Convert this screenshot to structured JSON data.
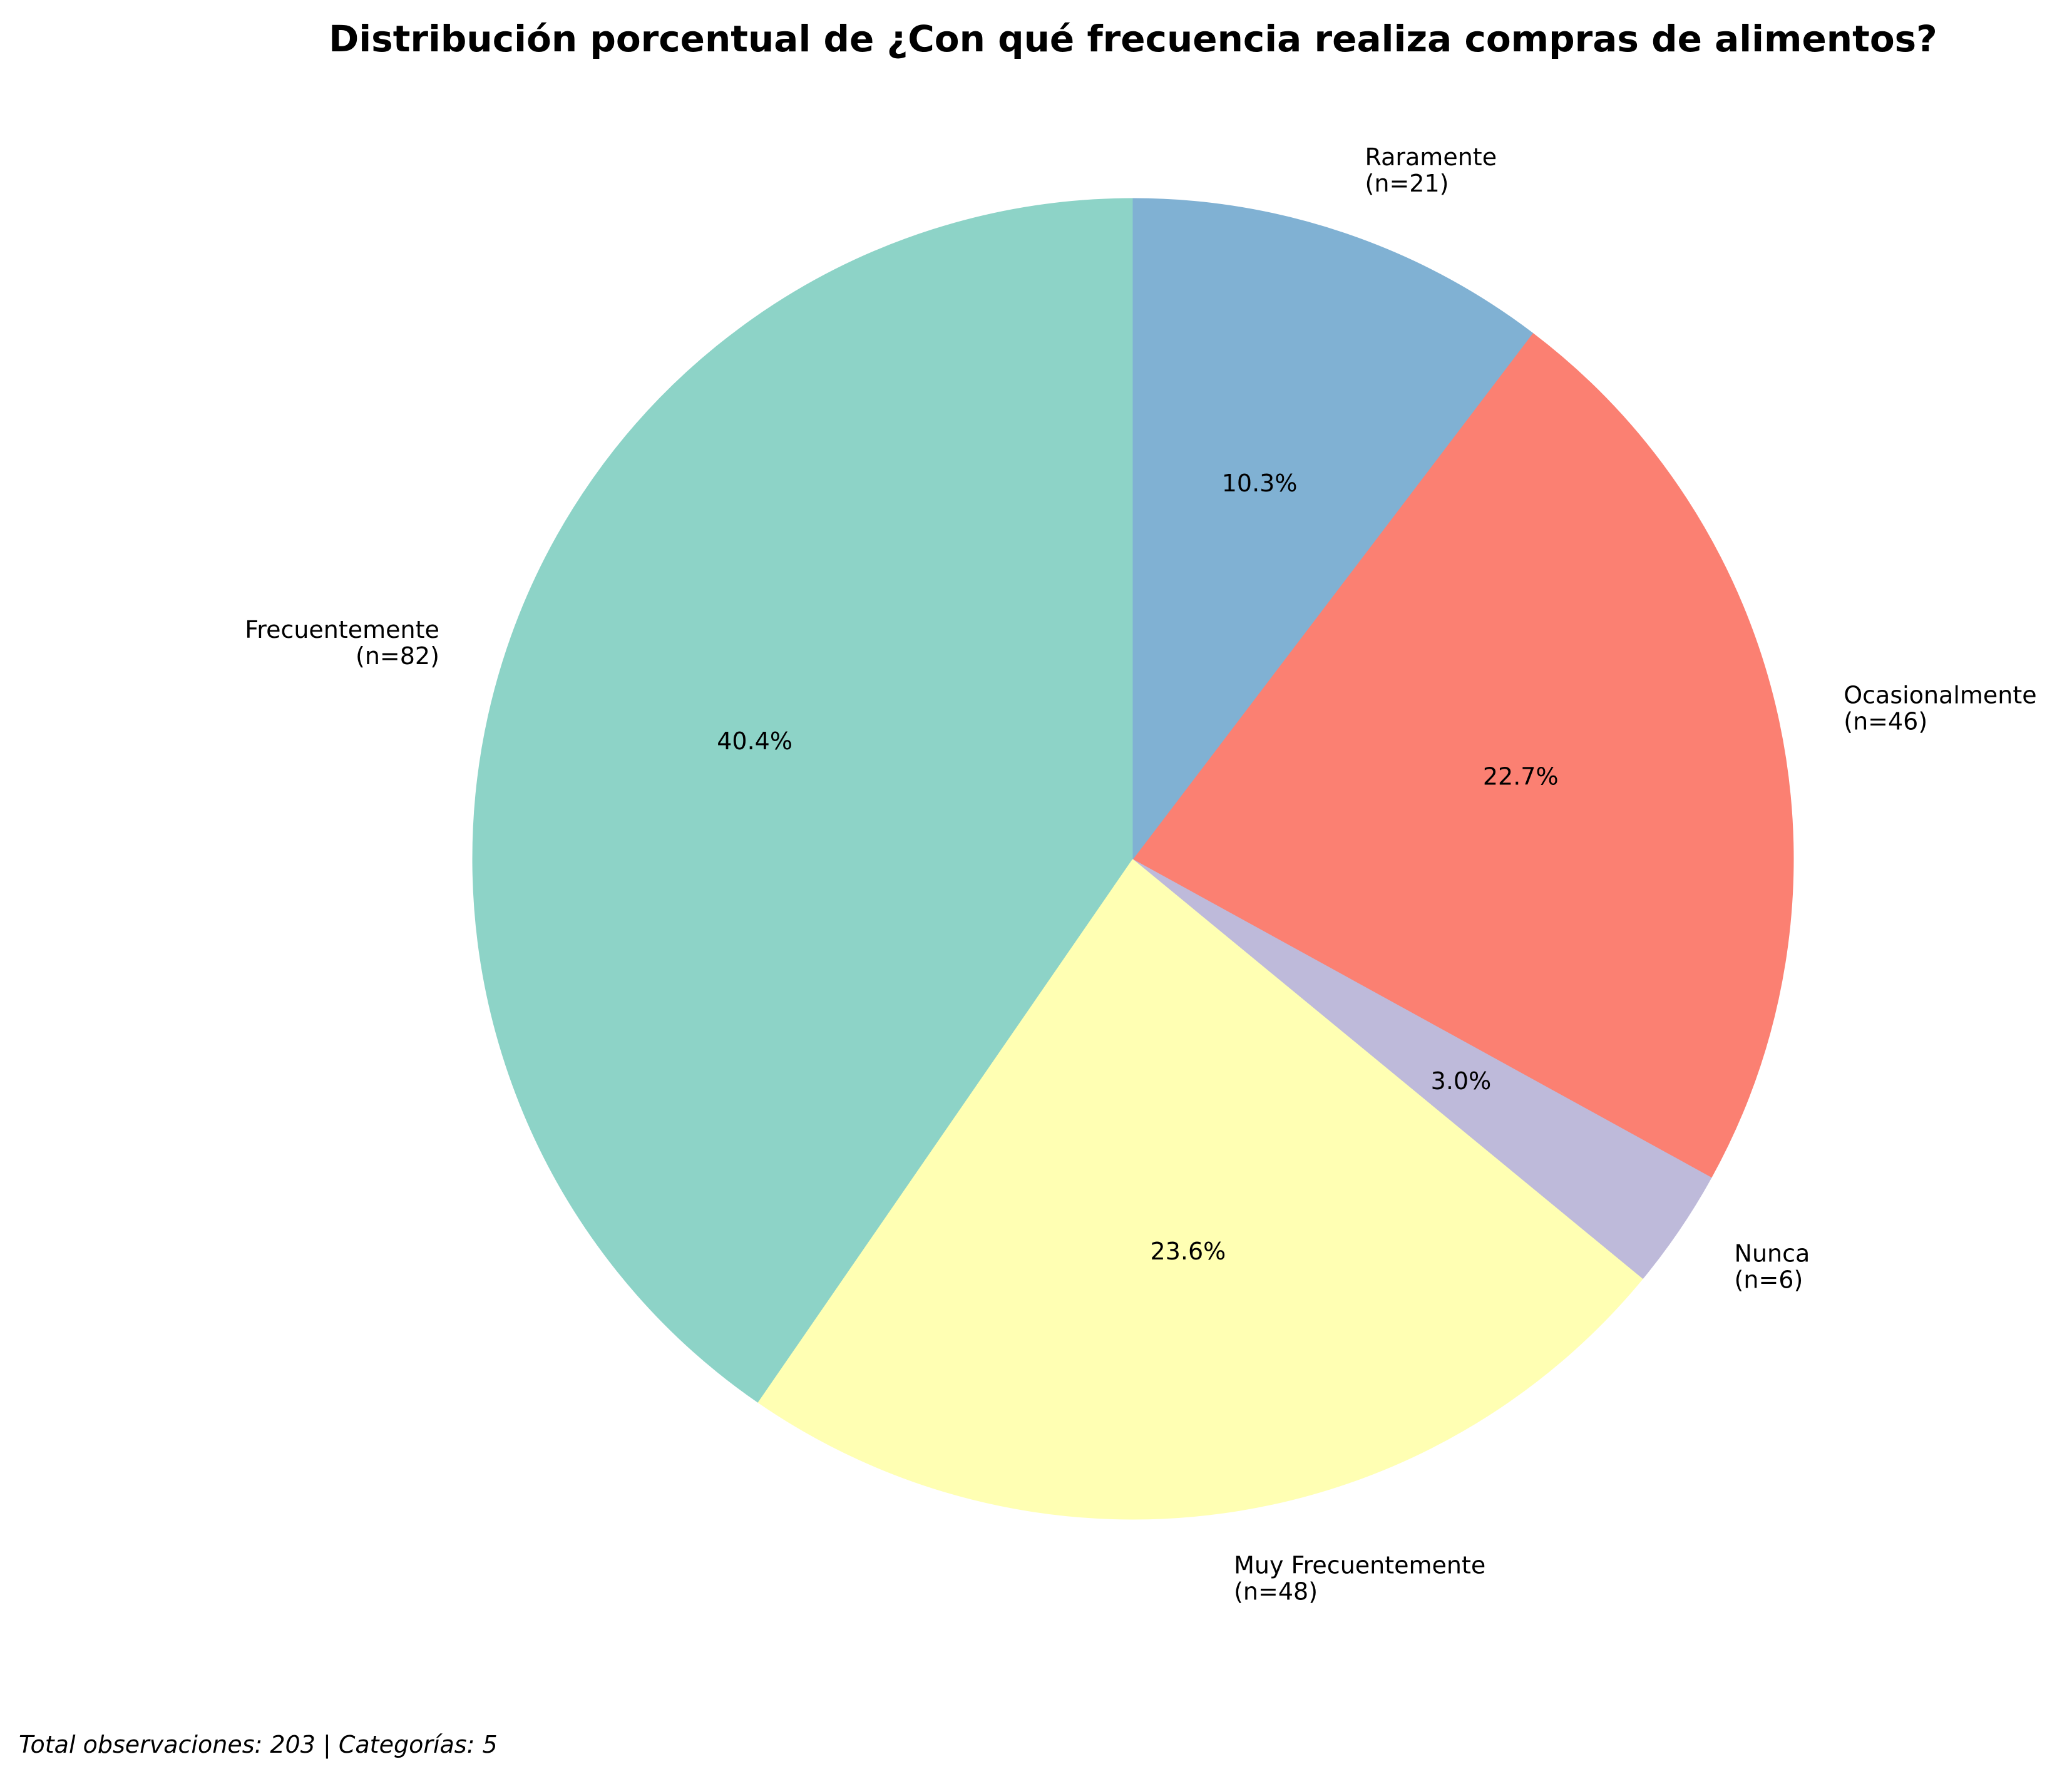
{
  "chart_data": {
    "type": "pie",
    "title": "Distribución porcentual de ¿Con qué frecuencia realiza compras de alimentos?",
    "slices": [
      {
        "label": "Frecuentemente",
        "count_label": "(n=82)",
        "value": 82,
        "percent_label": "40.4%",
        "color": "#8dd3c7"
      },
      {
        "label": "Muy Frecuentemente",
        "count_label": "(n=48)",
        "value": 48,
        "percent_label": "23.6%",
        "color": "#ffffb3"
      },
      {
        "label": "Nunca",
        "count_label": "(n=6)",
        "value": 6,
        "percent_label": "3.0%",
        "color": "#bebada"
      },
      {
        "label": "Ocasionalmente",
        "count_label": "(n=46)",
        "value": 46,
        "percent_label": "22.7%",
        "color": "#fb8072"
      },
      {
        "label": "Raramente",
        "count_label": "(n=21)",
        "value": 21,
        "percent_label": "10.3%",
        "color": "#80b1d3"
      }
    ],
    "start_angle_deg": 90,
    "direction": "counterclockwise"
  },
  "footnote": "Total observaciones: 203 | Categorías: 5"
}
